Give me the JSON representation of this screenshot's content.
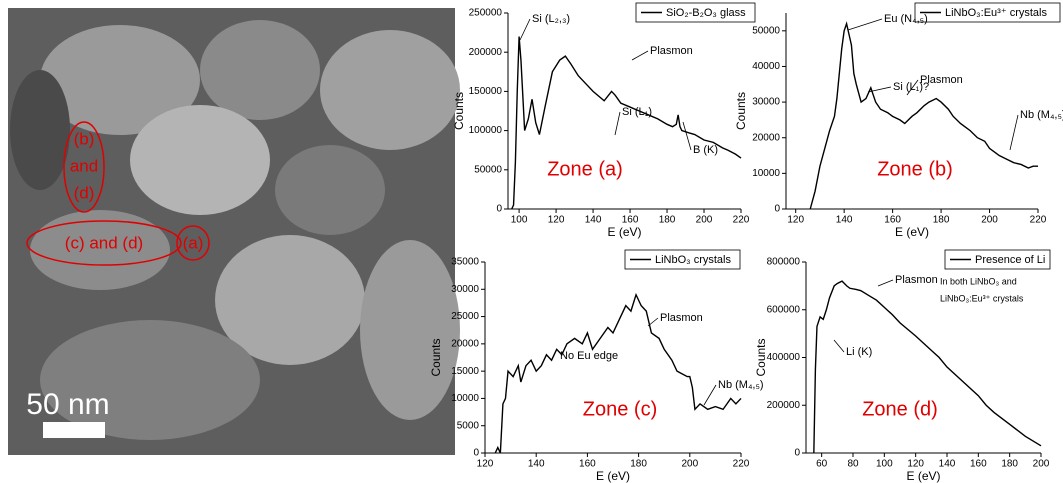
{
  "image": {
    "zone_bd": [
      "(b)",
      "and",
      "(d)"
    ],
    "zone_cd": "(c) and (d)",
    "zone_a": "(a)",
    "scale_bar": "50 nm"
  },
  "chart_data": [
    {
      "type": "line",
      "legend": "SiO₂-B₂O₃ glass",
      "xlabel": "E (eV)",
      "ylabel": "Counts",
      "zone_label": "Zone (a)",
      "annotations": [
        "Si (L₂,₃)",
        "Plasmon",
        "Si (L₁)",
        "B (K)"
      ],
      "xlim": [
        94,
        220
      ],
      "xticks": [
        100,
        120,
        140,
        160,
        180,
        200,
        220
      ],
      "ylim": [
        0,
        250000
      ],
      "yticks": [
        0,
        50000,
        100000,
        150000,
        200000,
        250000
      ],
      "series": [
        {
          "name": "SiO₂-B₂O₃ glass",
          "color": "#000000",
          "x": [
            96,
            97,
            98,
            99,
            100,
            101,
            103,
            105,
            107,
            109,
            111,
            114,
            118,
            122,
            125,
            128,
            132,
            136,
            140,
            146,
            150,
            152,
            155,
            160,
            165,
            170,
            175,
            180,
            183,
            185,
            186,
            187,
            188,
            192,
            195,
            200,
            205,
            210,
            213,
            217,
            220
          ],
          "values": [
            0,
            5000,
            60000,
            150000,
            220000,
            190000,
            100000,
            115000,
            140000,
            110000,
            95000,
            130000,
            175000,
            190000,
            195000,
            185000,
            170000,
            160000,
            150000,
            138000,
            150000,
            145000,
            135000,
            130000,
            125000,
            120000,
            115000,
            108000,
            105000,
            108000,
            120000,
            105000,
            100000,
            97000,
            95000,
            88000,
            85000,
            78000,
            75000,
            70000,
            65000
          ]
        }
      ]
    },
    {
      "type": "line",
      "legend": "LiNbO₃:Eu³⁺ crystals",
      "xlabel": "E (eV)",
      "ylabel": "Counts",
      "zone_label": "Zone (b)",
      "annotations": [
        "Eu (N₄,₅)",
        "Si (L₁)?",
        "Plasmon",
        "Nb (M₄,₅)"
      ],
      "xlim": [
        116,
        220
      ],
      "xticks": [
        120,
        140,
        160,
        180,
        200,
        220
      ],
      "ylim": [
        0,
        55000
      ],
      "yticks": [
        0,
        10000,
        20000,
        30000,
        40000,
        50000
      ],
      "series": [
        {
          "name": "LiNbO₃:Eu³⁺ crystals",
          "color": "#000000",
          "x": [
            126,
            128,
            130,
            132,
            134,
            136,
            137,
            139,
            140,
            141,
            142,
            143,
            144,
            145,
            147,
            149,
            151,
            153,
            155,
            158,
            160,
            163,
            165,
            168,
            170,
            173,
            175,
            178,
            180,
            183,
            185,
            188,
            192,
            195,
            198,
            200,
            202,
            204,
            207,
            210,
            213,
            216,
            218,
            220
          ],
          "values": [
            0,
            5000,
            12000,
            17000,
            22000,
            26000,
            31000,
            45000,
            50000,
            52000,
            49000,
            46000,
            38000,
            35000,
            30000,
            31000,
            34000,
            30000,
            28000,
            27000,
            26000,
            25000,
            24000,
            26000,
            27000,
            29000,
            30000,
            31000,
            30000,
            28000,
            26000,
            24000,
            22000,
            20000,
            19000,
            17000,
            16000,
            15000,
            14000,
            13000,
            12500,
            11500,
            12000,
            12000
          ]
        }
      ]
    },
    {
      "type": "line",
      "legend": "LiNbO₃ crystals",
      "xlabel": "E (eV)",
      "ylabel": "Counts",
      "zone_label": "Zone (c)",
      "annotations": [
        "No Eu edge",
        "Plasmon",
        "Nb (M₄,₅)"
      ],
      "xlim": [
        120,
        220
      ],
      "xticks": [
        120,
        140,
        160,
        180,
        200,
        220
      ],
      "ylim": [
        0,
        35000
      ],
      "yticks": [
        0,
        5000,
        10000,
        15000,
        20000,
        25000,
        30000,
        35000
      ],
      "series": [
        {
          "name": "LiNbO₃ crystals",
          "color": "#000000",
          "x": [
            124,
            125,
            126,
            127,
            128,
            129,
            131,
            133,
            134,
            136,
            138,
            140,
            142,
            144,
            146,
            148,
            150,
            152,
            155,
            158,
            160,
            162,
            165,
            168,
            170,
            173,
            175,
            177,
            179,
            181,
            183,
            185,
            188,
            190,
            193,
            195,
            197,
            199,
            200,
            201,
            202,
            204,
            207,
            210,
            213,
            216,
            218,
            220
          ],
          "values": [
            0,
            1000,
            0,
            9000,
            10000,
            15000,
            14000,
            16000,
            13000,
            16000,
            17000,
            15000,
            16000,
            18000,
            17000,
            19000,
            18000,
            20000,
            21000,
            20000,
            22000,
            19000,
            21000,
            23000,
            22000,
            25000,
            27000,
            26000,
            29000,
            27000,
            26000,
            22000,
            21000,
            19000,
            17000,
            15000,
            14500,
            14000,
            14000,
            12000,
            8000,
            9000,
            8000,
            8500,
            8000,
            10000,
            9000,
            10000
          ]
        }
      ]
    },
    {
      "type": "line",
      "legend": "Presence of Li",
      "xlabel": "E (eV)",
      "ylabel": "Counts",
      "zone_label": "Zone (d)",
      "annotations": [
        "Plasmon",
        "Li (K)",
        "In both LiNbO₃ and",
        "LiNbO₃:Eu³⁺ crystals"
      ],
      "xlim": [
        50,
        200
      ],
      "xticks": [
        60,
        80,
        100,
        120,
        140,
        160,
        180,
        200
      ],
      "ylim": [
        0,
        800000
      ],
      "yticks": [
        0,
        200000,
        400000,
        600000,
        800000
      ],
      "series": [
        {
          "name": "Presence of Li",
          "color": "#000000",
          "x": [
            55,
            56,
            57,
            59,
            61,
            63,
            65,
            68,
            70,
            73,
            76,
            78,
            82,
            85,
            90,
            95,
            100,
            105,
            110,
            120,
            130,
            135,
            140,
            150,
            160,
            165,
            170,
            180,
            190,
            200
          ],
          "values": [
            0,
            350000,
            530000,
            570000,
            560000,
            600000,
            650000,
            700000,
            710000,
            720000,
            700000,
            690000,
            685000,
            680000,
            660000,
            640000,
            610000,
            580000,
            545000,
            490000,
            430000,
            400000,
            360000,
            300000,
            240000,
            200000,
            170000,
            120000,
            70000,
            30000
          ]
        }
      ]
    }
  ]
}
